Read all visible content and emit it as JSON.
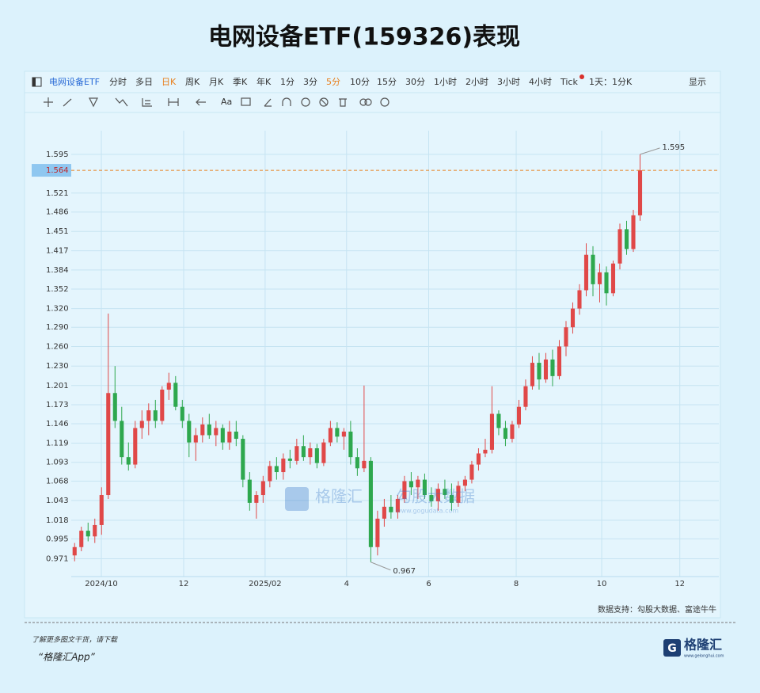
{
  "chart_data": {
    "type": "candlestick",
    "title": "电网设备ETF(159326)表现",
    "candles": {
      "open": [
        0.975,
        0.985,
        1.005,
        0.998,
        1.012,
        1.05,
        1.19,
        1.15,
        1.1,
        1.09,
        1.14,
        1.15,
        1.165,
        1.15,
        1.195,
        1.205,
        1.17,
        1.15,
        1.12,
        1.13,
        1.145,
        1.13,
        1.14,
        1.12,
        1.135,
        1.125,
        1.07,
        1.04,
        1.05,
        1.068,
        1.088,
        1.08,
        1.098,
        1.095,
        1.115,
        1.1,
        1.112,
        1.092,
        1.12,
        1.14,
        1.128,
        1.135,
        1.1,
        1.085,
        1.095,
        0.985,
        1.02,
        1.035,
        1.028,
        1.045,
        1.068,
        1.06,
        1.07,
        1.05,
        1.042,
        1.058,
        1.05,
        1.04,
        1.062,
        1.07,
        1.09,
        1.105,
        1.11,
        1.16,
        1.14,
        1.125,
        1.145,
        1.17,
        1.2,
        1.235,
        1.21,
        1.24,
        1.215,
        1.26,
        1.29,
        1.32,
        1.35,
        1.41,
        1.36,
        1.38,
        1.345,
        1.395,
        1.455,
        1.42,
        1.48
      ],
      "high": [
        0.99,
        1.01,
        1.015,
        1.02,
        1.06,
        1.312,
        1.23,
        1.17,
        1.12,
        1.15,
        1.165,
        1.175,
        1.18,
        1.2,
        1.22,
        1.215,
        1.18,
        1.16,
        1.14,
        1.155,
        1.16,
        1.15,
        1.145,
        1.15,
        1.15,
        1.13,
        1.08,
        1.055,
        1.075,
        1.095,
        1.1,
        1.105,
        1.11,
        1.125,
        1.13,
        1.12,
        1.118,
        1.125,
        1.15,
        1.148,
        1.14,
        1.15,
        1.112,
        1.201,
        1.1,
        1.03,
        1.045,
        1.05,
        1.05,
        1.075,
        1.08,
        1.075,
        1.078,
        1.06,
        1.065,
        1.07,
        1.065,
        1.068,
        1.075,
        1.095,
        1.112,
        1.125,
        1.2,
        1.165,
        1.15,
        1.15,
        1.18,
        1.21,
        1.245,
        1.25,
        1.25,
        1.255,
        1.27,
        1.3,
        1.33,
        1.36,
        1.43,
        1.425,
        1.395,
        1.39,
        1.4,
        1.465,
        1.47,
        1.49,
        1.595
      ],
      "low": [
        0.968,
        0.98,
        0.992,
        0.99,
        1.0,
        1.045,
        1.14,
        1.09,
        1.082,
        1.085,
        1.125,
        1.13,
        1.14,
        1.145,
        1.18,
        1.165,
        1.14,
        1.1,
        1.095,
        1.12,
        1.125,
        1.115,
        1.11,
        1.11,
        1.115,
        1.06,
        1.03,
        1.02,
        1.04,
        1.06,
        1.07,
        1.07,
        1.085,
        1.09,
        1.095,
        1.09,
        1.085,
        1.088,
        1.115,
        1.12,
        1.11,
        1.09,
        1.075,
        1.08,
        0.967,
        0.975,
        1.01,
        1.02,
        1.02,
        1.04,
        1.05,
        1.045,
        1.045,
        1.035,
        1.03,
        1.045,
        1.03,
        1.035,
        1.055,
        1.065,
        1.082,
        1.1,
        1.105,
        1.13,
        1.115,
        1.12,
        1.14,
        1.165,
        1.195,
        1.195,
        1.205,
        1.2,
        1.21,
        1.245,
        1.28,
        1.31,
        1.34,
        1.34,
        1.33,
        1.325,
        1.34,
        1.385,
        1.41,
        1.415,
        1.47
      ],
      "close": [
        0.985,
        1.005,
        0.998,
        1.012,
        1.05,
        1.19,
        1.15,
        1.1,
        1.09,
        1.14,
        1.15,
        1.165,
        1.15,
        1.195,
        1.205,
        1.17,
        1.15,
        1.12,
        1.13,
        1.145,
        1.13,
        1.14,
        1.12,
        1.135,
        1.125,
        1.07,
        1.04,
        1.05,
        1.068,
        1.088,
        1.08,
        1.098,
        1.095,
        1.115,
        1.1,
        1.112,
        1.092,
        1.12,
        1.14,
        1.128,
        1.135,
        1.1,
        1.085,
        1.095,
        0.985,
        1.02,
        1.035,
        1.028,
        1.045,
        1.068,
        1.06,
        1.07,
        1.05,
        1.042,
        1.058,
        1.05,
        1.04,
        1.062,
        1.07,
        1.09,
        1.105,
        1.11,
        1.16,
        1.14,
        1.125,
        1.145,
        1.17,
        1.2,
        1.235,
        1.21,
        1.24,
        1.215,
        1.26,
        1.29,
        1.32,
        1.35,
        1.41,
        1.36,
        1.38,
        1.345,
        1.395,
        1.455,
        1.42,
        1.48,
        1.564
      ]
    },
    "up_color": "#e04848",
    "down_color": "#2ea84e",
    "log_scale": true,
    "grid": true,
    "xlim": [
      -0.5,
      95.7
    ],
    "xticks": [
      {
        "value": 3.97,
        "label": "2024/10"
      },
      {
        "value": 16.2,
        "label": "12"
      },
      {
        "value": 28.3,
        "label": "2025/02"
      },
      {
        "value": 40.4,
        "label": "4"
      },
      {
        "value": 52.6,
        "label": "6"
      },
      {
        "value": 65.6,
        "label": "8"
      },
      {
        "value": 78.3,
        "label": "10"
      },
      {
        "value": 89.9,
        "label": "12"
      }
    ],
    "ylim": [
      0.95,
      1.642
    ],
    "yticks": [
      0.971,
      0.995,
      1.018,
      1.043,
      1.068,
      1.093,
      1.119,
      1.146,
      1.173,
      1.201,
      {
        "value": 1.23,
        "label": "1.230"
      },
      {
        "value": 1.26,
        "label": "1.260"
      },
      {
        "value": 1.29,
        "label": "1.290"
      },
      {
        "value": 1.32,
        "label": "1.320"
      },
      1.352,
      1.384,
      1.417,
      1.451,
      1.486,
      1.521,
      1.595
    ],
    "last_price": 1.564,
    "last_price_color": "#e8801e",
    "max_label": 1.595,
    "min_label": 0.967,
    "source": "数据支持：勾股大数据、富途牛牛"
  },
  "toolbar": {
    "symbol": "电网设备ETF",
    "periods": [
      "分时",
      "多日",
      "日K",
      "周K",
      "月K",
      "季K",
      "年K",
      "1分",
      "3分",
      "5分",
      "10分",
      "15分",
      "30分",
      "1小时",
      "2小时",
      "3小时",
      "4小时",
      "Tick"
    ],
    "interval": "1天：1分K",
    "display": "显示",
    "text_tool": "Aa"
  },
  "watermark": {
    "brand": "格隆汇",
    "data": "勾股大数据",
    "url": "www.gogudata.com"
  },
  "footer": {
    "note": "了解更多图文干货，请下载",
    "app": "“格隆汇App”",
    "logo": "格隆汇",
    "logo_url": "www.gelonghui.com"
  }
}
